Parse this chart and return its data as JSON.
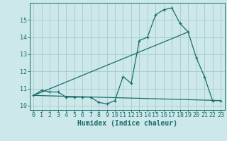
{
  "xlabel": "Humidex (Indice chaleur)",
  "bg_color": "#cce8ea",
  "grid_color": "#aac8cc",
  "line_color": "#1a6e68",
  "xlim": [
    -0.5,
    23.5
  ],
  "ylim": [
    9.75,
    16.0
  ],
  "x_ticks": [
    0,
    1,
    2,
    3,
    4,
    5,
    6,
    7,
    8,
    9,
    10,
    11,
    12,
    13,
    14,
    15,
    16,
    17,
    18,
    19,
    20,
    21,
    22,
    23
  ],
  "y_ticks": [
    10,
    11,
    12,
    13,
    14,
    15
  ],
  "line1_x": [
    0,
    1,
    2,
    3,
    4,
    5,
    6,
    7,
    8,
    9,
    10,
    11,
    12,
    13,
    14,
    15,
    16,
    17,
    18,
    19,
    20,
    21,
    22,
    23
  ],
  "line1_y": [
    10.6,
    10.9,
    10.8,
    10.8,
    10.5,
    10.5,
    10.5,
    10.5,
    10.2,
    10.1,
    10.3,
    11.7,
    11.3,
    13.8,
    14.0,
    15.3,
    15.6,
    15.7,
    14.8,
    14.3,
    12.8,
    11.7,
    10.3,
    10.3
  ],
  "line2_x": [
    0,
    23
  ],
  "line2_y": [
    10.6,
    10.3
  ],
  "line3_x": [
    0,
    19
  ],
  "line3_y": [
    10.6,
    14.3
  ],
  "tick_fontsize": 6.0,
  "xlabel_fontsize": 7.0
}
